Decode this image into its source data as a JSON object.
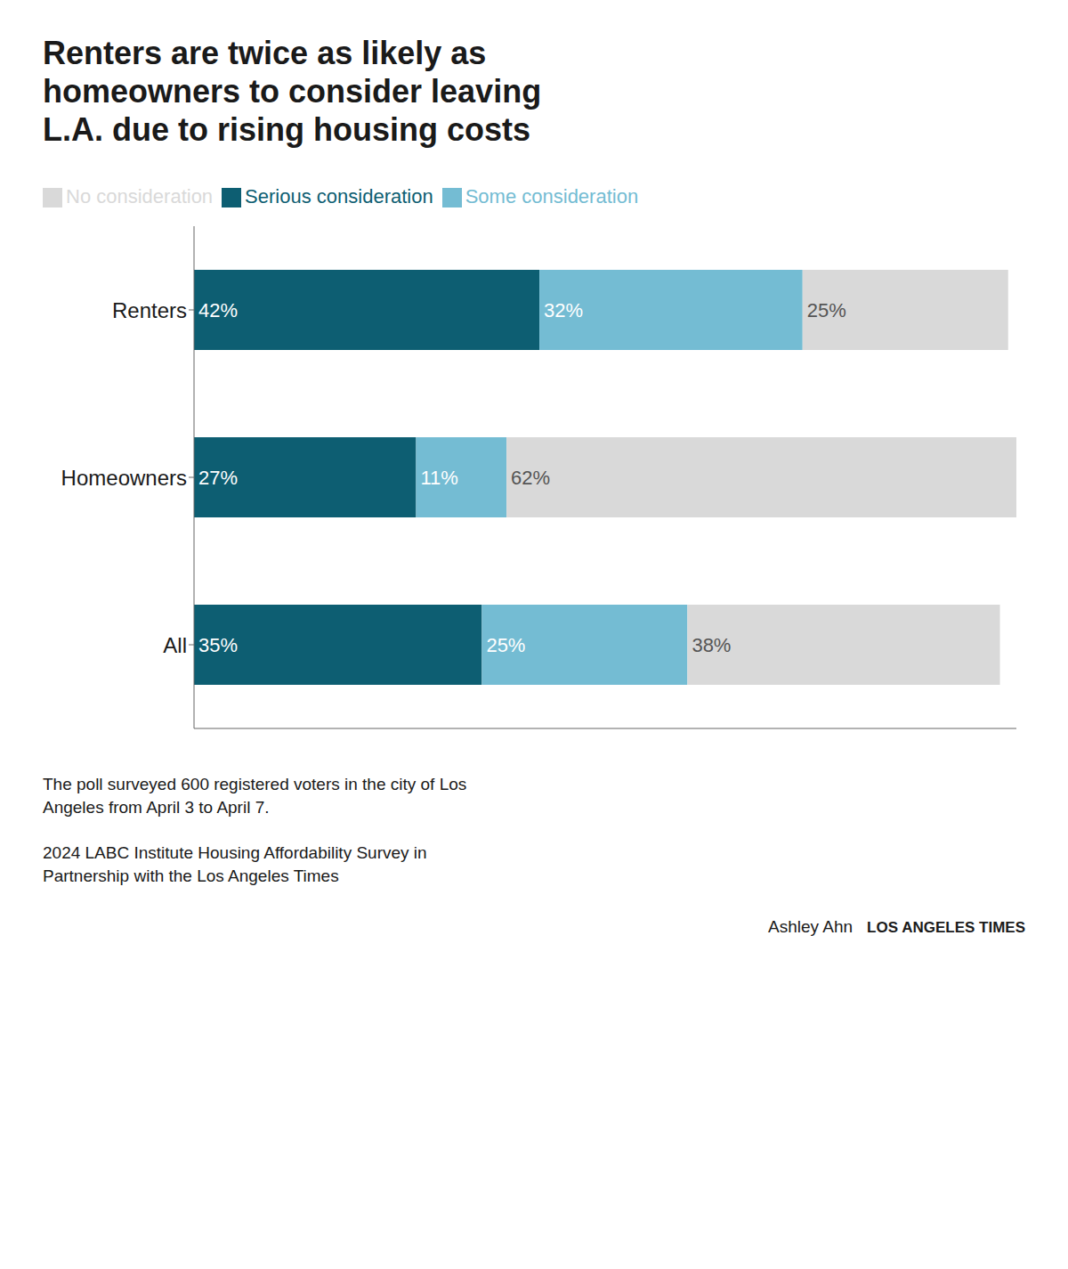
{
  "chart_data": {
    "type": "bar",
    "orientation": "horizontal",
    "stacked": true,
    "data_labels": true,
    "title": "Renters are twice as likely as\nhomeowners to consider leaving\nL.A. due to rising housing costs",
    "categories": [
      "Renters",
      "Homeowners",
      "All"
    ],
    "series": [
      {
        "name": "Serious consideration",
        "color": "#0d5e72",
        "values": [
          42,
          27,
          35
        ],
        "value_labels": [
          "42%",
          "27%",
          "35%"
        ]
      },
      {
        "name": "Some consideration",
        "color": "#74bcd3",
        "values": [
          32,
          11,
          25
        ],
        "value_labels": [
          "32%",
          "11%",
          "25%"
        ]
      },
      {
        "name": "No consideration",
        "color": "#d9d9d9",
        "values": [
          25,
          62,
          38
        ],
        "value_labels": [
          "25%",
          "62%",
          "38%"
        ]
      }
    ],
    "xlim": [
      0,
      100
    ],
    "xticks": [
      0,
      25,
      50,
      75,
      100
    ],
    "tick_labels": "y",
    "grid": false,
    "legend": "top-left",
    "annotations": [
      "The poll surveyed 600 registered voters in the city of Los\nAngeles from April 3 to April 7.",
      "2024 LABC Institute Housing Affordability Survey in\nPartnership with the Los Angeles Times",
      "Ashley Ahn",
      "LOS ANGELES TIMES"
    ]
  }
}
